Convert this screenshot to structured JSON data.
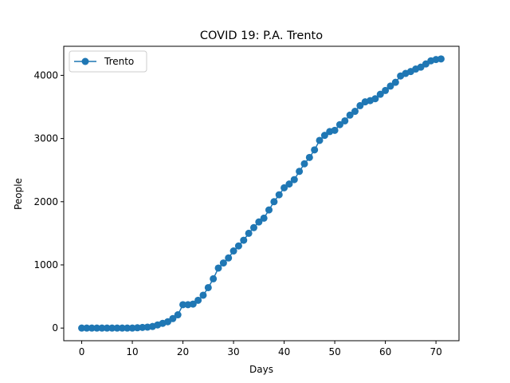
{
  "chart_data": {
    "type": "line",
    "title": "COVID 19: P.A. Trento",
    "xlabel": "Days",
    "ylabel": "People",
    "xlim": [
      -3.55,
      74.55
    ],
    "ylim": [
      -200,
      4460
    ],
    "xticks": [
      0,
      10,
      20,
      30,
      40,
      50,
      60,
      70
    ],
    "yticks": [
      0,
      1000,
      2000,
      3000,
      4000
    ],
    "grid": false,
    "legend_position": "top-left",
    "series": [
      {
        "name": "Trento",
        "color": "#1f77b4",
        "marker": "circle",
        "x": [
          0,
          1,
          2,
          3,
          4,
          5,
          6,
          7,
          8,
          9,
          10,
          11,
          12,
          13,
          14,
          15,
          16,
          17,
          18,
          19,
          20,
          21,
          22,
          23,
          24,
          25,
          26,
          27,
          28,
          29,
          30,
          31,
          32,
          33,
          34,
          35,
          36,
          37,
          38,
          39,
          40,
          41,
          42,
          43,
          44,
          45,
          46,
          47,
          48,
          49,
          50,
          51,
          52,
          53,
          54,
          55,
          56,
          57,
          58,
          59,
          60,
          61,
          62,
          63,
          64,
          65,
          66,
          67,
          68,
          69,
          70,
          71
        ],
        "y": [
          0,
          0,
          0,
          0,
          0,
          0,
          0,
          0,
          0,
          0,
          0,
          5,
          10,
          15,
          25,
          50,
          75,
          100,
          150,
          210,
          370,
          370,
          380,
          440,
          520,
          640,
          780,
          950,
          1030,
          1110,
          1220,
          1300,
          1390,
          1500,
          1590,
          1680,
          1740,
          1870,
          2000,
          2110,
          2220,
          2280,
          2350,
          2480,
          2600,
          2700,
          2820,
          2970,
          3050,
          3110,
          3130,
          3220,
          3280,
          3370,
          3430,
          3520,
          3580,
          3600,
          3630,
          3700,
          3760,
          3830,
          3890,
          3990,
          4030,
          4060,
          4100,
          4130,
          4180,
          4230,
          4250,
          4260
        ]
      }
    ]
  }
}
